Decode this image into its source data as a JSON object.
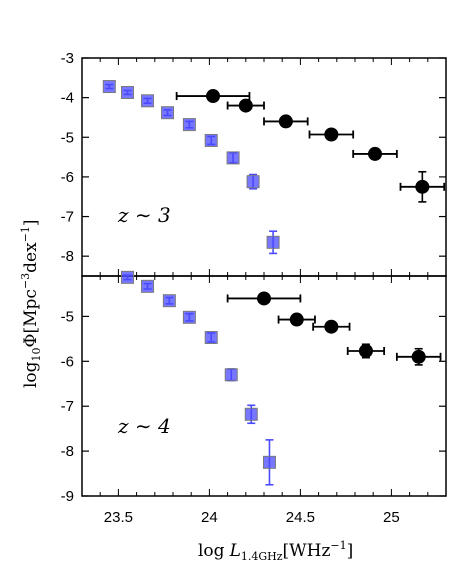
{
  "chart_data": [
    {
      "type": "scatter",
      "panel": "top",
      "annotation": "z ∼ 3",
      "xlim": [
        23.3,
        25.3
      ],
      "ylim": [
        -8.5,
        -3
      ],
      "yticks": [
        -3,
        -4,
        -5,
        -6,
        -7,
        -8
      ],
      "series": [
        {
          "color": "#4a4aff",
          "marker": "square",
          "x": [
            23.45,
            23.55,
            23.66,
            23.77,
            23.89,
            24.01,
            24.13,
            24.24,
            24.35
          ],
          "y": [
            -3.72,
            -3.87,
            -4.08,
            -4.38,
            -4.68,
            -5.08,
            -5.52,
            -6.12,
            -7.65
          ],
          "yerr": [
            0.05,
            0.05,
            0.06,
            0.07,
            0.08,
            0.1,
            0.13,
            0.18,
            0.28
          ]
        },
        {
          "color": "#000000",
          "marker": "circle",
          "x": [
            24.02,
            24.2,
            24.42,
            24.67,
            24.91,
            25.17
          ],
          "y": [
            -3.96,
            -4.2,
            -4.6,
            -4.93,
            -5.42,
            -6.25
          ],
          "xerr": [
            0.2,
            0.1,
            0.12,
            0.12,
            0.12,
            0.12
          ],
          "yerr": [
            0.08,
            0.1,
            0.1,
            0.1,
            0.12,
            0.38
          ]
        }
      ]
    },
    {
      "type": "scatter",
      "panel": "bottom",
      "annotation": "z ∼ 4",
      "xlim": [
        23.3,
        25.3
      ],
      "ylim": [
        -9,
        -4.1
      ],
      "yticks": [
        -5,
        -6,
        -7,
        -8,
        -9
      ],
      "xticks": [
        23.5,
        24,
        24.5,
        25
      ],
      "xtick_labels": [
        "23.5",
        "24",
        "24.5",
        "25"
      ],
      "series": [
        {
          "color": "#4a4aff",
          "marker": "square",
          "x": [
            23.55,
            23.66,
            23.78,
            23.89,
            24.01,
            24.12,
            24.23,
            24.33
          ],
          "y": [
            -4.13,
            -4.33,
            -4.65,
            -5.02,
            -5.47,
            -6.3,
            -7.18,
            -8.25
          ],
          "yerr": [
            0.05,
            0.06,
            0.07,
            0.08,
            0.1,
            0.13,
            0.2,
            0.5
          ]
        },
        {
          "color": "#000000",
          "marker": "circle",
          "x": [
            24.3,
            24.48,
            24.67,
            24.86,
            25.15
          ],
          "y": [
            -4.6,
            -5.07,
            -5.23,
            -5.77,
            -5.9
          ],
          "xerr": [
            0.2,
            0.1,
            0.1,
            0.1,
            0.12
          ],
          "yerr": [
            0.08,
            0.1,
            0.1,
            0.15,
            0.18
          ]
        }
      ]
    }
  ],
  "xlabel": "log L_1.4GHz[WHz^−1]",
  "ylabel": "log_10 Φ[Mpc^−3 dex^−1]"
}
